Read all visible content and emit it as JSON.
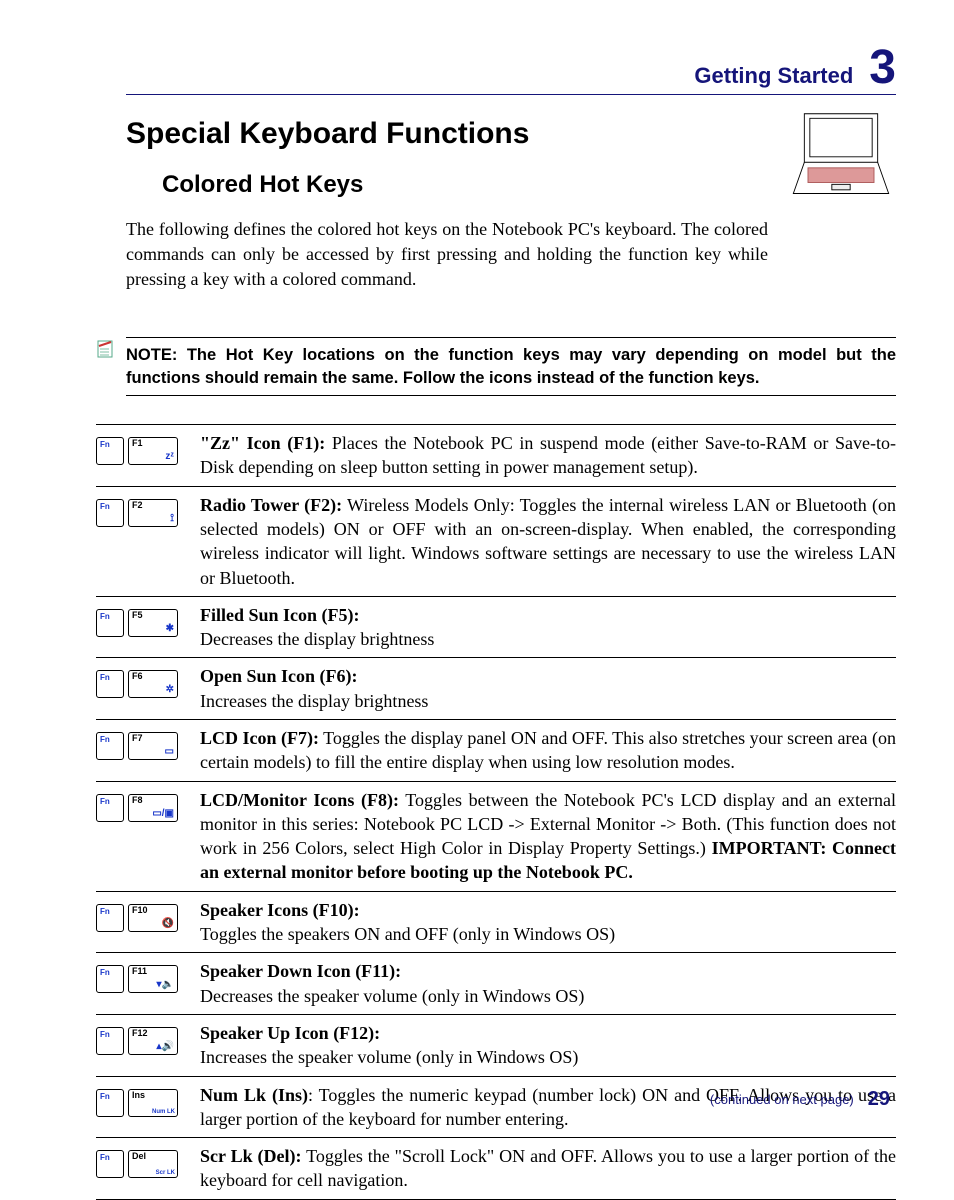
{
  "section": {
    "label": "Getting Started",
    "number": "3"
  },
  "h1": "Special Keyboard Functions",
  "h2": "Colored Hot Keys",
  "intro": "The following defines the colored hot keys on the Notebook PC's keyboard. The colored commands can only be accessed by first pressing and holding the function key while pressing a key with a colored command.",
  "note": "NOTE: The Hot Key locations on the function keys may vary depending on model but the functions should remain the same. Follow the icons instead of the function keys.",
  "fn_label": "Fn",
  "rows": [
    {
      "k": "F1",
      "sym": "zᶻ",
      "title": "\"Zz\" Icon (F1):",
      "body": " Places the Notebook PC in suspend mode (either Save-to-RAM or Save-to-Disk depending on sleep button setting in power management setup)."
    },
    {
      "k": "F2",
      "sym": "⟟",
      "title": "Radio Tower (F2):",
      "body": " Wireless Models Only: Toggles the internal wireless LAN or Bluetooth (on selected models) ON or OFF with an on-screen-display. When enabled, the corresponding wireless indicator will light. Windows software settings are necessary to use the wireless LAN or Bluetooth."
    },
    {
      "k": "F5",
      "sym": "✱",
      "title": "Filled Sun Icon (F5):",
      "body": "Decreases the display brightness",
      "br": true
    },
    {
      "k": "F6",
      "sym": "✲",
      "title": "Open Sun Icon (F6):",
      "body": "Increases the display brightness",
      "br": true
    },
    {
      "k": "F7",
      "sym": "▭",
      "title": "LCD Icon (F7):",
      "body": " Toggles the display panel ON and OFF. This also stretches your screen area (on certain models) to fill the entire display when using low resolution modes."
    },
    {
      "k": "F8",
      "sym": "▭/▣",
      "title": "LCD/Monitor Icons (F8):",
      "body": " Toggles between the Notebook PC's LCD display and an external monitor in this series: Notebook PC LCD -> External Monitor -> Both. (This function does not work in 256 Colors, select High Color in Display Property Settings.) ",
      "tail_b": "IMPORTANT: Connect an external monitor before booting up the Notebook PC."
    },
    {
      "k": "F10",
      "sym": "🔇",
      "title": "Speaker Icons (F10):",
      "body": "Toggles the speakers ON and OFF (only in Windows OS)",
      "br": true
    },
    {
      "k": "F11",
      "sym": "▾🔈",
      "title": "Speaker Down Icon (F11):",
      "body": "Decreases the speaker volume (only in Windows OS)",
      "br": true
    },
    {
      "k": "F12",
      "sym": "▴🔊",
      "title": "Speaker Up Icon (F12):",
      "body": "Increases the speaker volume (only in Windows OS)",
      "br": true
    },
    {
      "k": "Ins",
      "symtxt": "Num LK",
      "title": "Num Lk (Ins)",
      "body": ": Toggles the numeric keypad (number lock) ON and OFF. Allows you to use a larger portion of the keyboard for number entering."
    },
    {
      "k": "Del",
      "symtxt": "Scr LK",
      "title": "Scr Lk (Del):",
      "body": " Toggles the \"Scroll Lock\" ON and OFF. Allows you to use a larger portion of the keyboard for cell navigation."
    }
  ],
  "footer": {
    "continued": "(continued on next page)",
    "page": "29"
  },
  "colors": {
    "brand": "#15157a",
    "key_accent": "#1836c9",
    "text": "#000000",
    "bg": "#ffffff"
  }
}
